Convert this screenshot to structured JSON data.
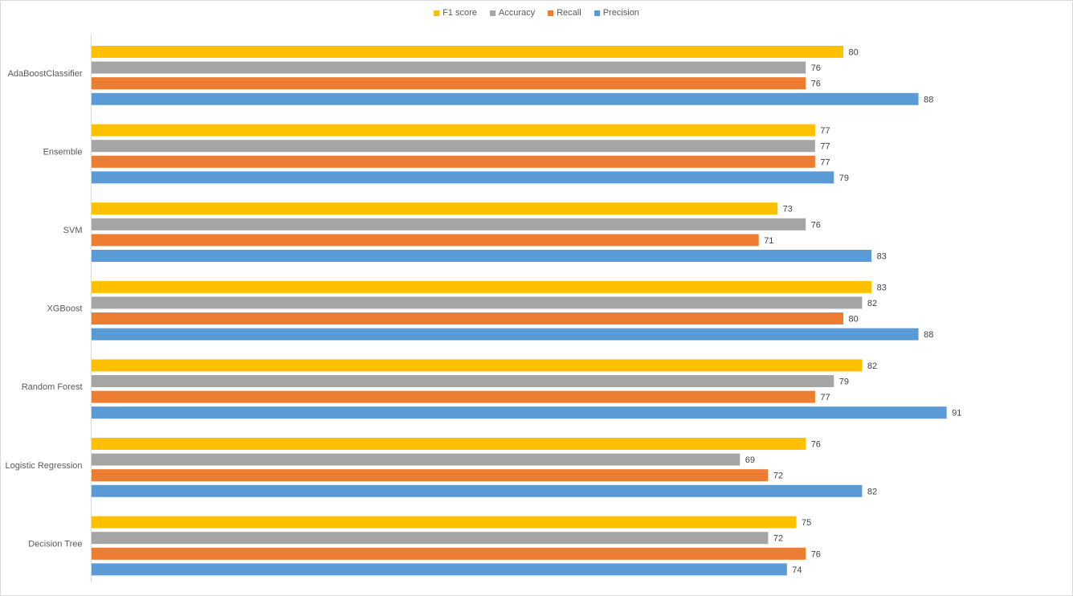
{
  "chart_data": {
    "type": "bar",
    "orientation": "horizontal",
    "categories": [
      "AdaBoostClassifier",
      "Ensemble",
      "SVM",
      "XGBoost",
      "Random Forest",
      "Logistic Regression",
      "Decision Tree"
    ],
    "series": [
      {
        "name": "F1 score",
        "color": "#FFC000",
        "values": [
          80,
          77,
          73,
          83,
          82,
          76,
          75
        ]
      },
      {
        "name": "Accuracy",
        "color": "#A5A5A5",
        "values": [
          76,
          77,
          76,
          82,
          79,
          69,
          72
        ]
      },
      {
        "name": "Recall",
        "color": "#ED7D31",
        "values": [
          76,
          77,
          71,
          80,
          77,
          72,
          76
        ]
      },
      {
        "name": "Precision",
        "color": "#5B9BD5",
        "values": [
          88,
          79,
          83,
          88,
          91,
          82,
          74
        ]
      }
    ],
    "legend_order": [
      "F1 score",
      "Accuracy",
      "Recall",
      "Precision"
    ],
    "legend_position": "top",
    "xlim": [
      0,
      100
    ],
    "grid": false,
    "data_labels": true,
    "title": "",
    "xlabel": "",
    "ylabel": ""
  }
}
